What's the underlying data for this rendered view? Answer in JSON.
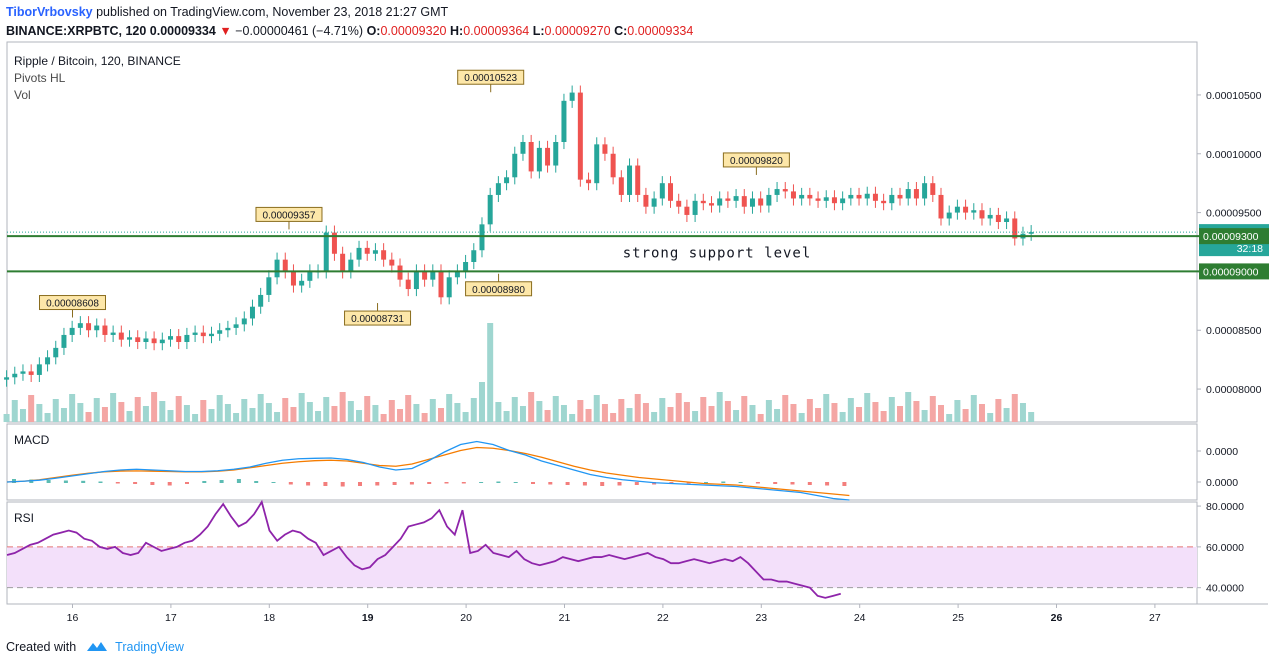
{
  "header": {
    "author": "TiborVrbovsky",
    "published_text": "published on TradingView.com, November 23, 2018 21:27 GMT",
    "symbol": "BINANCE:XRPBTC, 120",
    "last": "0.00009334",
    "change_arrow": "▼",
    "change": "−0.00000461 (−4.71%)",
    "o_label": "O:",
    "o": "0.00009320",
    "h_label": "H:",
    "h": "0.00009364",
    "l_label": "L:",
    "l": "0.00009270",
    "c_label": "C:",
    "c": "0.00009334"
  },
  "footer": {
    "created_with": "Created with",
    "brand": "TradingView"
  },
  "colors": {
    "up": "#26a69a",
    "down": "#ef5350",
    "vol_up": "#9fd6d0",
    "vol_down": "#f4a6a4",
    "macd": "#2196f3",
    "signal": "#f57c00",
    "rsi": "#8e24aa",
    "support": "#2e7d32",
    "band": "#f3e0fa"
  },
  "chart_data": [
    {
      "type": "candlestick",
      "title": "Ripple / Bitcoin, 120, BINANCE",
      "indicators": [
        "Pivots HL",
        "Vol"
      ],
      "x_ticks": [
        "16",
        "17",
        "18",
        "19",
        "20",
        "21",
        "22",
        "23",
        "24",
        "25",
        "26",
        "27"
      ],
      "x_range": [
        15.33,
        27.4
      ],
      "ylim": [
        7.72e-05,
        0.0001095
      ],
      "y_ticks": [
        8e-05,
        8.5e-05,
        9e-05,
        9.5e-05,
        0.0001,
        0.000105
      ],
      "y_tick_labels": [
        "0.00008000",
        "0.00008500",
        "0.00009000",
        "0.00009500",
        "0.00010000",
        "0.00010500"
      ],
      "x_step": 0.0833,
      "closes": [
        8.1e-05,
        8.13e-05,
        8.15e-05,
        8.12e-05,
        8.21e-05,
        8.27e-05,
        8.35e-05,
        8.46e-05,
        8.52e-05,
        8.56e-05,
        8.5e-05,
        8.54e-05,
        8.46e-05,
        8.48e-05,
        8.42e-05,
        8.44e-05,
        8.4e-05,
        8.43e-05,
        8.39e-05,
        8.42e-05,
        8.45e-05,
        8.4e-05,
        8.46e-05,
        8.48e-05,
        8.45e-05,
        8.47e-05,
        8.5e-05,
        8.52e-05,
        8.55e-05,
        8.6e-05,
        8.7e-05,
        8.8e-05,
        8.95e-05,
        9.1e-05,
        9e-05,
        8.88e-05,
        8.92e-05,
        9e-05,
        9e-05,
        9.33e-05,
        9.15e-05,
        9e-05,
        9.1e-05,
        9.2e-05,
        9.15e-05,
        9.18e-05,
        9.1e-05,
        9.05e-05,
        8.93e-05,
        8.85e-05,
        9e-05,
        8.93e-05,
        9e-05,
        8.78e-05,
        8.95e-05,
        9e-05,
        9.08e-05,
        9.18e-05,
        9.4e-05,
        9.65e-05,
        9.75e-05,
        9.8e-05,
        0.0001,
        0.000101,
        9.85e-05,
        0.0001005,
        9.9e-05,
        0.000101,
        0.0001045,
        0.0001052,
        9.78e-05,
        9.75e-05,
        0.0001008,
        0.0001,
        9.8e-05,
        9.65e-05,
        9.9e-05,
        9.65e-05,
        9.55e-05,
        9.62e-05,
        9.75e-05,
        9.6e-05,
        9.55e-05,
        9.48e-05,
        9.6e-05,
        9.58e-05,
        9.56e-05,
        9.62e-05,
        9.6e-05,
        9.64e-05,
        9.55e-05,
        9.62e-05,
        9.56e-05,
        9.65e-05,
        9.7e-05,
        9.68e-05,
        9.62e-05,
        9.65e-05,
        9.62e-05,
        9.6e-05,
        9.63e-05,
        9.58e-05,
        9.62e-05,
        9.65e-05,
        9.62e-05,
        9.66e-05,
        9.6e-05,
        9.58e-05,
        9.65e-05,
        9.62e-05,
        9.7e-05,
        9.62e-05,
        9.75e-05,
        9.65e-05,
        9.45e-05,
        9.5e-05,
        9.55e-05,
        9.5e-05,
        9.52e-05,
        9.45e-05,
        9.48e-05,
        9.42e-05,
        9.45e-05,
        9.28e-05,
        9.32e-05,
        9.334e-05
      ],
      "pivot_labels": [
        {
          "x": 16.0,
          "y": 8.608e-05,
          "text": "0.00008608",
          "kind": "high"
        },
        {
          "x": 18.2,
          "y": 9.357e-05,
          "text": "0.00009357",
          "kind": "high"
        },
        {
          "x": 19.1,
          "y": 8.731e-05,
          "text": "0.00008731",
          "kind": "low"
        },
        {
          "x": 20.25,
          "y": 0.00010523,
          "text": "0.00010523",
          "kind": "high"
        },
        {
          "x": 20.33,
          "y": 8.98e-05,
          "text": "0.00008980",
          "kind": "low"
        },
        {
          "x": 22.95,
          "y": 9.82e-05,
          "text": "0.00009820",
          "kind": "high"
        }
      ],
      "price_labels": [
        {
          "y": 9.334e-05,
          "text": "0.00009334",
          "sub": "32:18"
        },
        {
          "y": 9.3e-05,
          "text": "0.00009300"
        },
        {
          "y": 9e-05,
          "text": "0.00009000"
        }
      ],
      "support_lines": [
        9.3e-05,
        9e-05
      ],
      "annotation": {
        "text": "strong support level",
        "x": 22.55,
        "y": 9.12e-05
      }
    },
    {
      "type": "line",
      "title": "MACD",
      "y_ticks": [
        0,
        0
      ],
      "y_tick_labels": [
        "0.0000",
        "0.0000"
      ],
      "macd": [
        0,
        0.5,
        1.2,
        2.5,
        4,
        5.5,
        7,
        8,
        8.5,
        8,
        7.5,
        7,
        7,
        7.5,
        8.5,
        10,
        12.5,
        14.5,
        15.5,
        15.8,
        16,
        15,
        13,
        10,
        8,
        9,
        14,
        20,
        25,
        27,
        25,
        21,
        18,
        14,
        11,
        8,
        5,
        3,
        1.5,
        0.5,
        -0.5,
        -1,
        -1.5,
        -2,
        -2.5,
        -3,
        -4,
        -5,
        -6,
        -7,
        -9,
        -11,
        -12
      ],
      "signal": [
        0,
        0.5,
        1.5,
        3,
        4.5,
        5.8,
        6.8,
        7.3,
        7.4,
        7.2,
        7,
        6.8,
        6.8,
        7.2,
        8,
        9.5,
        11,
        12.5,
        13.5,
        14.2,
        14.5,
        14,
        12.5,
        11,
        10.5,
        12,
        15,
        18,
        21,
        23,
        22.5,
        21,
        19,
        16.5,
        13.5,
        10.5,
        8,
        6,
        4.5,
        3,
        2,
        1,
        0,
        -1,
        -1.5,
        -2,
        -3,
        -4,
        -5,
        -6,
        -7,
        -8,
        -9
      ],
      "histogram": [
        3,
        2.5,
        2,
        1.5,
        1.2,
        0.5,
        -0.5,
        -1,
        -2,
        -2.5,
        -1,
        1,
        2,
        3,
        1,
        0,
        -1.5,
        -2.5,
        -3,
        -3.5,
        -3,
        -2.5,
        -2,
        -1.5,
        -1,
        -0.5,
        -0.5,
        0,
        0.5,
        0,
        -1,
        -1.5,
        -2,
        -2.5,
        -3,
        -2.5,
        -2,
        -1.5,
        -1,
        -0.5,
        0,
        0.5,
        0,
        -0.5,
        -1,
        -1.5,
        -2,
        -2.5,
        -3
      ]
    },
    {
      "type": "line",
      "title": "RSI",
      "ylim": [
        32,
        82
      ],
      "y_ticks": [
        40,
        60,
        80
      ],
      "y_tick_labels": [
        "40.0000",
        "60.0000",
        "80.0000"
      ],
      "overbought": 60,
      "oversold": 40,
      "values": [
        56,
        57,
        59,
        61,
        62,
        64,
        66,
        67,
        68,
        67,
        64,
        63,
        60,
        59,
        60,
        57,
        56,
        57,
        62,
        60,
        58,
        59,
        60,
        62,
        63,
        66,
        70,
        76,
        81,
        75,
        70,
        72,
        76,
        82,
        68,
        63,
        66,
        68,
        67,
        64,
        62,
        56,
        58,
        60,
        55,
        51,
        49,
        50,
        54,
        56,
        60,
        64,
        70,
        71,
        72,
        74,
        78,
        70,
        66,
        78,
        57,
        58,
        61,
        57,
        56,
        55,
        58,
        54,
        52,
        51,
        52,
        53,
        55,
        54,
        53,
        54,
        55,
        55,
        56,
        55,
        54,
        55,
        56,
        57,
        55,
        54,
        52,
        52,
        53,
        54,
        53,
        52,
        53,
        54,
        53,
        55,
        52,
        48,
        44,
        44,
        43,
        43,
        42,
        41,
        40,
        36,
        35,
        36,
        37
      ]
    }
  ]
}
